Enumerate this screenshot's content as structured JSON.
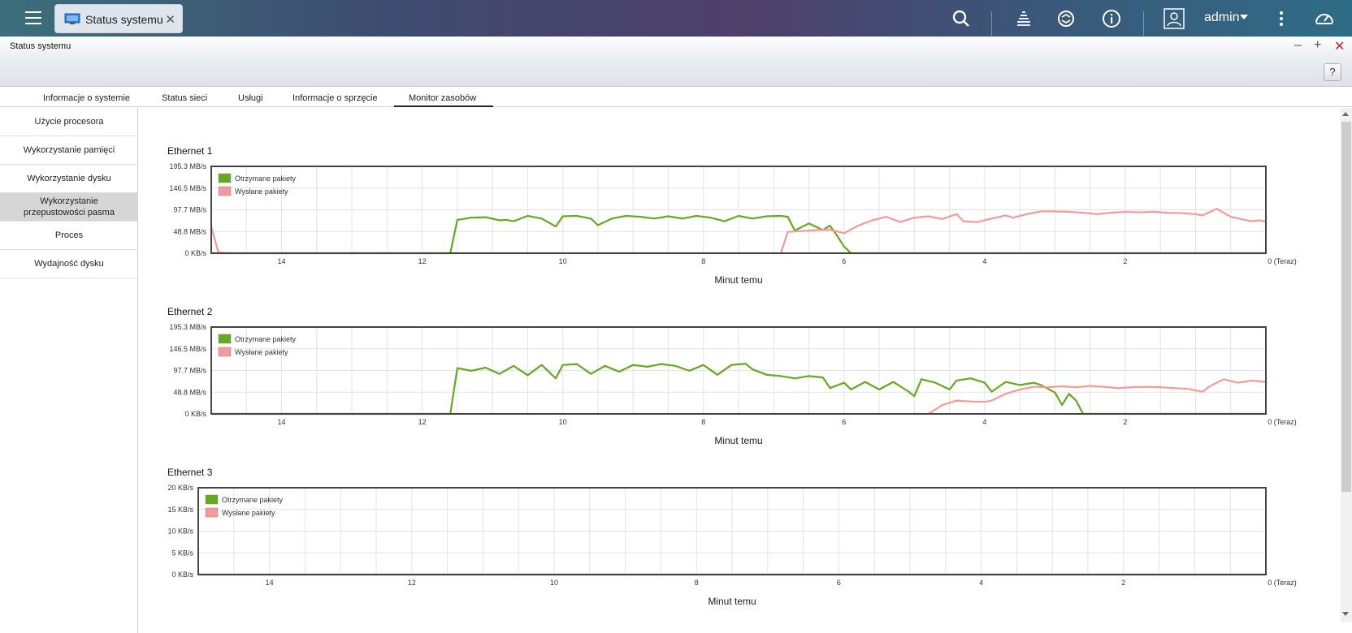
{
  "app": {
    "tab_label": "Status systemu",
    "user": "admin",
    "window_title": "Status systemu",
    "help_label": "?"
  },
  "icons": {
    "menu": "hamburger-menu-icon",
    "app_tab": "monitor-icon",
    "close_tab": "close-icon",
    "search": "search-icon",
    "tasks": "stack-icon",
    "sync": "sync-icon",
    "info": "info-icon",
    "user": "user-icon",
    "more": "more-vertical-icon",
    "dashboard": "speedometer-icon"
  },
  "window_controls": {
    "minimize": "–",
    "maximize": "+",
    "close": "✕"
  },
  "tabs": [
    {
      "label": "Informacje o systemie"
    },
    {
      "label": "Status sieci"
    },
    {
      "label": "Usługi"
    },
    {
      "label": "Informacje o sprzęcie"
    },
    {
      "label": "Monitor zasobów",
      "active": true
    }
  ],
  "sidebar": {
    "items": [
      {
        "label": "Użycie procesora"
      },
      {
        "label": "Wykorzystanie pamięci"
      },
      {
        "label": "Wykorzystanie dysku"
      },
      {
        "label": "Wykorzystanie przepustowości pasma",
        "active": true
      },
      {
        "label": "Proces"
      },
      {
        "label": "Wydajność dysku"
      }
    ]
  },
  "colors": {
    "received": "#65a91d",
    "sent": "#f49a9a",
    "active_tab": "#222222",
    "active_sidebar": "#d6d6d6"
  },
  "chart_data": [
    {
      "type": "line",
      "title": "Ethernet 1",
      "xlabel": "Minut temu",
      "ylabel": "",
      "x_ticks": [
        "14",
        "12",
        "10",
        "8",
        "6",
        "4",
        "2",
        "0 (Teraz)"
      ],
      "y_ticks": [
        "195.3 MB/s",
        "146.5 MB/s",
        "97.7 MB/s",
        "48.8 MB/s",
        "0 KB/s"
      ],
      "ylim": [
        0,
        195.3
      ],
      "xlim": [
        15,
        0
      ],
      "legend": "top-left",
      "series": [
        {
          "name": "Otrzymane pakiety",
          "color": "#65a91d",
          "points": [
            [
              15,
              0
            ],
            [
              11.6,
              0
            ],
            [
              11.5,
              75
            ],
            [
              11.3,
              80
            ],
            [
              11.1,
              81
            ],
            [
              10.9,
              74
            ],
            [
              10.8,
              75
            ],
            [
              10.7,
              72
            ],
            [
              10.5,
              84
            ],
            [
              10.3,
              78
            ],
            [
              10.1,
              60
            ],
            [
              10.0,
              83
            ],
            [
              9.8,
              84
            ],
            [
              9.6,
              78
            ],
            [
              9.5,
              63
            ],
            [
              9.3,
              78
            ],
            [
              9.1,
              84
            ],
            [
              8.9,
              82
            ],
            [
              8.7,
              78
            ],
            [
              8.5,
              83
            ],
            [
              8.3,
              78
            ],
            [
              8.1,
              84
            ],
            [
              7.9,
              80
            ],
            [
              7.7,
              72
            ],
            [
              7.5,
              84
            ],
            [
              7.3,
              78
            ],
            [
              7.1,
              83
            ],
            [
              6.9,
              84
            ],
            [
              6.8,
              82
            ],
            [
              6.7,
              51
            ],
            [
              6.5,
              67
            ],
            [
              6.3,
              52
            ],
            [
              6.2,
              62
            ],
            [
              6.1,
              40
            ],
            [
              6.0,
              15
            ],
            [
              5.9,
              0
            ],
            [
              0,
              0
            ]
          ]
        },
        {
          "name": "Wysłane pakiety",
          "color": "#f49a9a",
          "points": [
            [
              15,
              60
            ],
            [
              14.9,
              2
            ],
            [
              14.8,
              0
            ],
            [
              6.9,
              0
            ],
            [
              6.8,
              48
            ],
            [
              6.6,
              50
            ],
            [
              6.4,
              52
            ],
            [
              6.2,
              53
            ],
            [
              6.0,
              45
            ],
            [
              5.8,
              62
            ],
            [
              5.6,
              74
            ],
            [
              5.4,
              82
            ],
            [
              5.2,
              70
            ],
            [
              5.0,
              80
            ],
            [
              4.8,
              83
            ],
            [
              4.6,
              77
            ],
            [
              4.4,
              88
            ],
            [
              4.3,
              72
            ],
            [
              4.1,
              70
            ],
            [
              3.9,
              78
            ],
            [
              3.7,
              85
            ],
            [
              3.6,
              80
            ],
            [
              3.4,
              88
            ],
            [
              3.2,
              94
            ],
            [
              3.0,
              94
            ],
            [
              2.8,
              93
            ],
            [
              2.6,
              91
            ],
            [
              2.4,
              88
            ],
            [
              2.2,
              91
            ],
            [
              2.0,
              93
            ],
            [
              1.8,
              92
            ],
            [
              1.6,
              93
            ],
            [
              1.4,
              91
            ],
            [
              1.2,
              90
            ],
            [
              1.0,
              88
            ],
            [
              0.9,
              85
            ],
            [
              0.7,
              100
            ],
            [
              0.5,
              82
            ],
            [
              0.3,
              75
            ],
            [
              0.2,
              72
            ],
            [
              0.1,
              74
            ],
            [
              0,
              72
            ]
          ]
        }
      ]
    },
    {
      "type": "line",
      "title": "Ethernet 2",
      "xlabel": "Minut temu",
      "ylabel": "",
      "x_ticks": [
        "14",
        "12",
        "10",
        "8",
        "6",
        "4",
        "2",
        "0 (Teraz)"
      ],
      "y_ticks": [
        "195.3 MB/s",
        "146.5 MB/s",
        "97.7 MB/s",
        "48.8 MB/s",
        "0 KB/s"
      ],
      "ylim": [
        0,
        195.3
      ],
      "xlim": [
        15,
        0
      ],
      "legend": "top-left",
      "series": [
        {
          "name": "Otrzymane pakiety",
          "color": "#65a91d",
          "points": [
            [
              15,
              0
            ],
            [
              11.6,
              0
            ],
            [
              11.5,
              103
            ],
            [
              11.3,
              97
            ],
            [
              11.1,
              104
            ],
            [
              10.9,
              90
            ],
            [
              10.7,
              108
            ],
            [
              10.5,
              87
            ],
            [
              10.3,
              110
            ],
            [
              10.1,
              80
            ],
            [
              10.0,
              110
            ],
            [
              9.8,
              112
            ],
            [
              9.6,
              90
            ],
            [
              9.4,
              108
            ],
            [
              9.2,
              95
            ],
            [
              9.0,
              110
            ],
            [
              8.8,
              106
            ],
            [
              8.6,
              112
            ],
            [
              8.4,
              108
            ],
            [
              8.2,
              97
            ],
            [
              8.0,
              110
            ],
            [
              7.8,
              88
            ],
            [
              7.6,
              110
            ],
            [
              7.4,
              113
            ],
            [
              7.3,
              100
            ],
            [
              7.1,
              88
            ],
            [
              6.9,
              85
            ],
            [
              6.7,
              80
            ],
            [
              6.5,
              85
            ],
            [
              6.3,
              82
            ],
            [
              6.2,
              58
            ],
            [
              6.0,
              70
            ],
            [
              5.9,
              55
            ],
            [
              5.7,
              72
            ],
            [
              5.5,
              55
            ],
            [
              5.3,
              72
            ],
            [
              5.1,
              52
            ],
            [
              5.0,
              40
            ],
            [
              4.9,
              78
            ],
            [
              4.7,
              70
            ],
            [
              4.5,
              55
            ],
            [
              4.4,
              75
            ],
            [
              4.2,
              80
            ],
            [
              4.0,
              70
            ],
            [
              3.9,
              50
            ],
            [
              3.7,
              72
            ],
            [
              3.5,
              65
            ],
            [
              3.3,
              70
            ],
            [
              3.2,
              65
            ],
            [
              3.0,
              48
            ],
            [
              2.9,
              20
            ],
            [
              2.8,
              45
            ],
            [
              2.7,
              30
            ],
            [
              2.6,
              0
            ],
            [
              0,
              0
            ]
          ]
        },
        {
          "name": "Wysłane pakiety",
          "color": "#f49a9a",
          "points": [
            [
              15,
              0
            ],
            [
              4.8,
              0
            ],
            [
              4.6,
              20
            ],
            [
              4.4,
              30
            ],
            [
              4.2,
              28
            ],
            [
              4.0,
              27
            ],
            [
              3.9,
              30
            ],
            [
              3.7,
              45
            ],
            [
              3.5,
              55
            ],
            [
              3.3,
              61
            ],
            [
              3.1,
              60
            ],
            [
              2.9,
              62
            ],
            [
              2.7,
              60
            ],
            [
              2.5,
              63
            ],
            [
              2.3,
              61
            ],
            [
              2.1,
              58
            ],
            [
              1.9,
              60
            ],
            [
              1.7,
              61
            ],
            [
              1.5,
              60
            ],
            [
              1.3,
              58
            ],
            [
              1.1,
              56
            ],
            [
              0.9,
              50
            ],
            [
              0.8,
              62
            ],
            [
              0.6,
              78
            ],
            [
              0.4,
              70
            ],
            [
              0.2,
              75
            ],
            [
              0,
              72
            ]
          ]
        }
      ]
    },
    {
      "type": "line",
      "title": "Ethernet 3",
      "xlabel": "Minut temu",
      "ylabel": "",
      "x_ticks": [
        "14",
        "12",
        "10",
        "8",
        "6",
        "4",
        "2",
        "0 (Teraz)"
      ],
      "y_ticks": [
        "20 KB/s",
        "15 KB/s",
        "10 KB/s",
        "5 KB/s",
        "0 KB/s"
      ],
      "ylim": [
        0,
        20
      ],
      "xlim": [
        15,
        0
      ],
      "legend": "top-left",
      "series": [
        {
          "name": "Otrzymane pakiety",
          "color": "#65a91d",
          "points": [
            [
              15,
              0
            ],
            [
              0,
              0
            ]
          ]
        },
        {
          "name": "Wysłane pakiety",
          "color": "#f49a9a",
          "points": [
            [
              15,
              0
            ],
            [
              0,
              0
            ]
          ]
        }
      ]
    }
  ]
}
